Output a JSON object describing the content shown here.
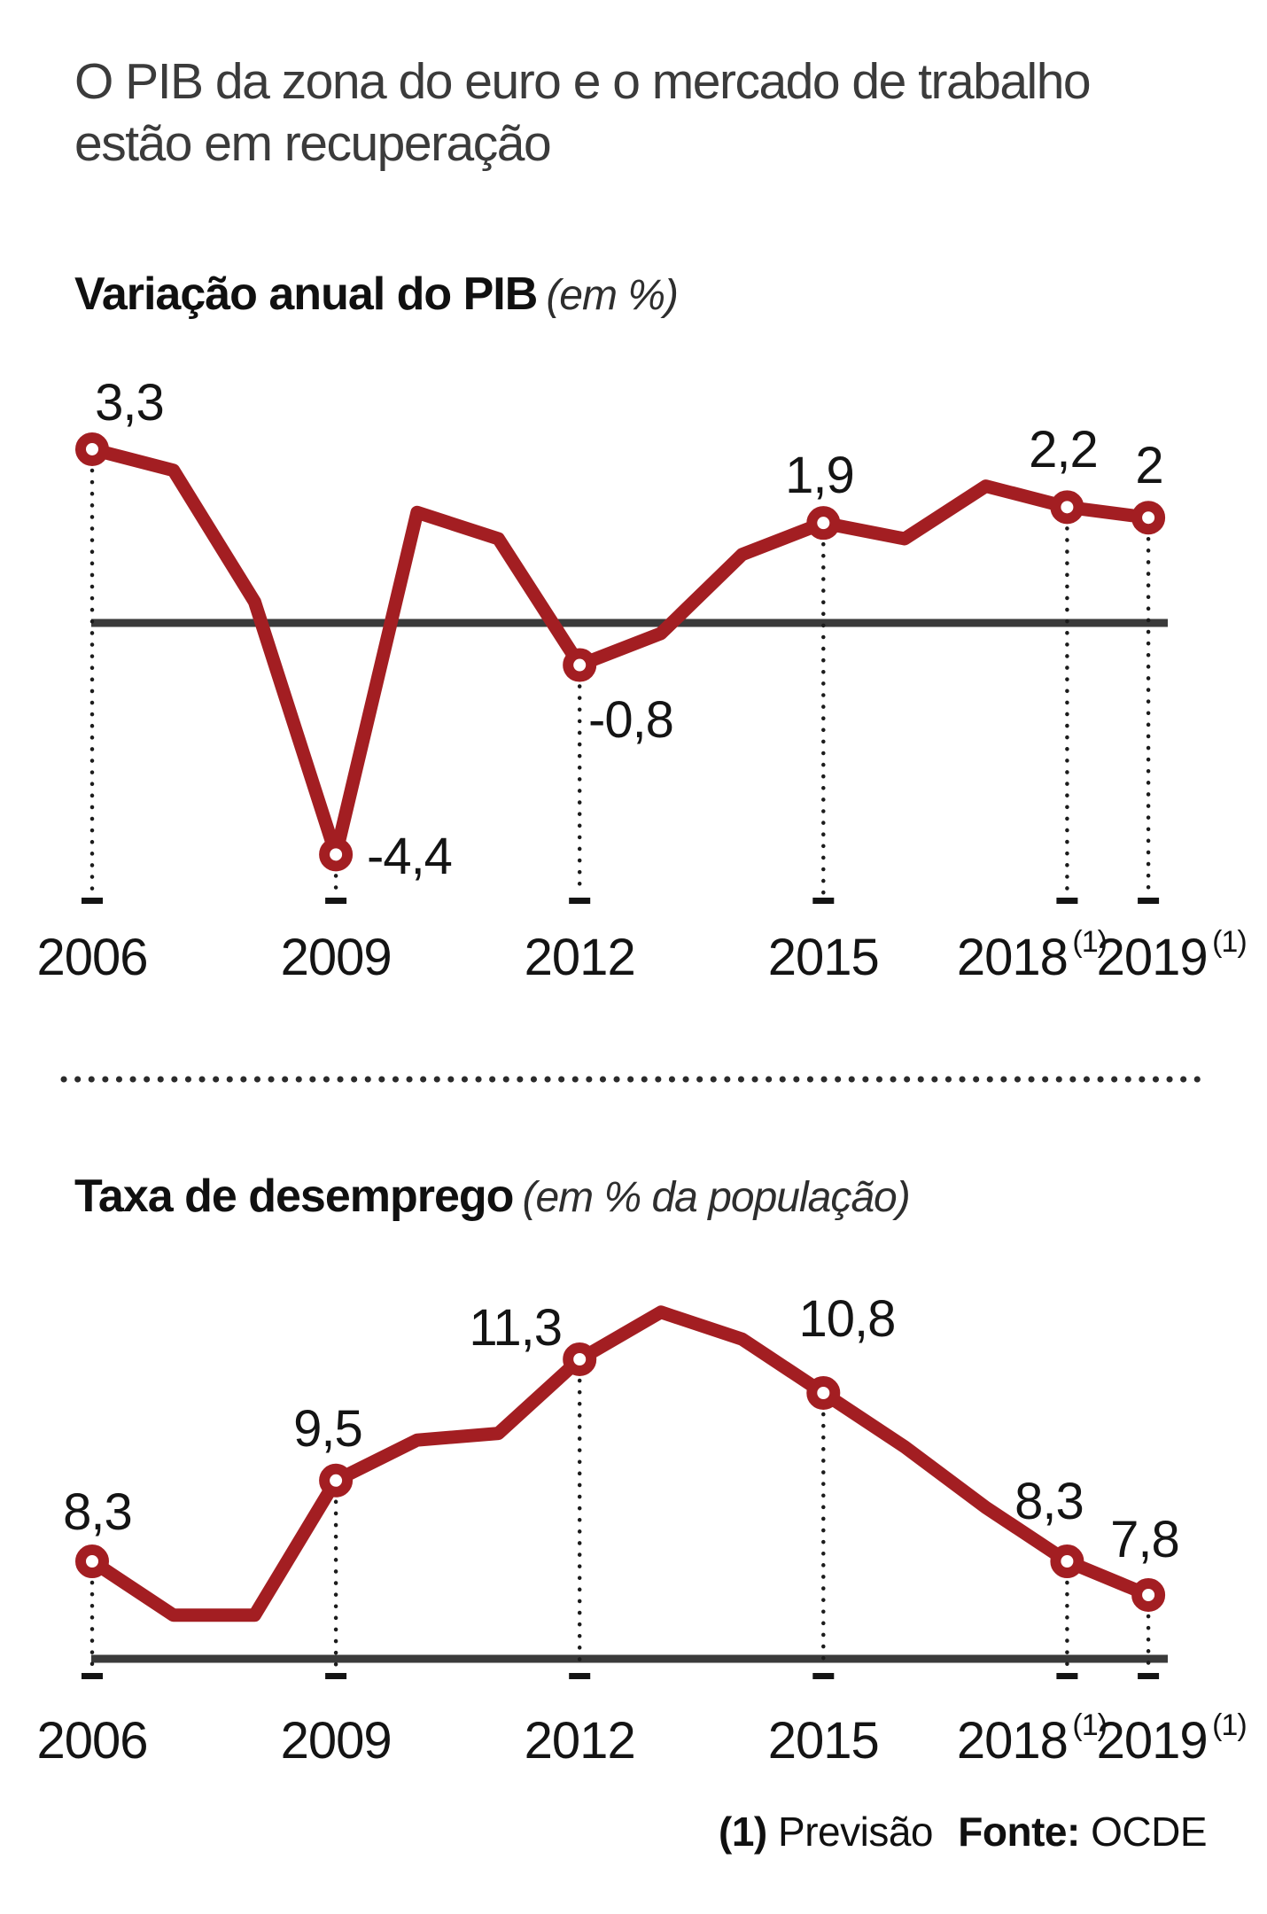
{
  "header": {
    "title_line1": "O PIB da zona do euro e o mercado de trabalho",
    "title_line2": "estão em recuperação"
  },
  "gdp_chart_header": {
    "title": "Variação anual do PIB",
    "unit_note": "(em %)"
  },
  "unemp_chart_header": {
    "title": "Taxa de desemprego",
    "unit_note": "(em % da população)"
  },
  "footer": {
    "marker": "(1)",
    "note": "Previsão",
    "source_label": "Fonte:",
    "source_value": "OCDE"
  },
  "colors": {
    "line_red": "#A31E22",
    "axis_dark": "#3a3a3a",
    "text_black": "#141414",
    "title_gray": "#3b3b3b"
  },
  "chart_data": [
    {
      "type": "line",
      "title": "Variação anual do PIB",
      "ylabel": "em %",
      "x": [
        2006,
        2007,
        2008,
        2009,
        2010,
        2011,
        2012,
        2013,
        2014,
        2015,
        2016,
        2017,
        2018,
        2019
      ],
      "values": [
        3.3,
        2.9,
        0.4,
        -4.4,
        2.1,
        1.6,
        -0.8,
        -0.2,
        1.3,
        1.9,
        1.6,
        2.6,
        2.2,
        2.0
      ],
      "baseline": "zero-line",
      "grid": false,
      "legend": "none",
      "labeled_points": [
        {
          "year": 2006,
          "value": 3.3,
          "label": "3,3"
        },
        {
          "year": 2009,
          "value": -4.4,
          "label": "-4,4"
        },
        {
          "year": 2012,
          "value": -0.8,
          "label": "-0,8"
        },
        {
          "year": 2015,
          "value": 1.9,
          "label": "1,9"
        },
        {
          "year": 2018,
          "value": 2.2,
          "label": "2,2"
        },
        {
          "year": 2019,
          "value": 2.0,
          "label": "2"
        }
      ],
      "x_ticks": [
        {
          "year": 2006,
          "label": "2006",
          "superscript": ""
        },
        {
          "year": 2009,
          "label": "2009",
          "superscript": ""
        },
        {
          "year": 2012,
          "label": "2012",
          "superscript": ""
        },
        {
          "year": 2015,
          "label": "2015",
          "superscript": ""
        },
        {
          "year": 2018,
          "label": "2018",
          "superscript": "(1)"
        },
        {
          "year": 2019,
          "label": "2019",
          "superscript": "(1)"
        }
      ]
    },
    {
      "type": "line",
      "title": "Taxa de desemprego",
      "ylabel": "em % da população",
      "x": [
        2006,
        2007,
        2008,
        2009,
        2010,
        2011,
        2012,
        2013,
        2014,
        2015,
        2016,
        2017,
        2018,
        2019
      ],
      "values": [
        8.3,
        7.5,
        7.5,
        9.5,
        10.1,
        10.2,
        11.3,
        12.0,
        11.6,
        10.8,
        10.0,
        9.1,
        8.3,
        7.8
      ],
      "baseline": "floor-line",
      "grid": false,
      "legend": "none",
      "labeled_points": [
        {
          "year": 2006,
          "value": 8.3,
          "label": "8,3"
        },
        {
          "year": 2009,
          "value": 9.5,
          "label": "9,5"
        },
        {
          "year": 2012,
          "value": 11.3,
          "label": "11,3"
        },
        {
          "year": 2015,
          "value": 10.8,
          "label": "10,8"
        },
        {
          "year": 2018,
          "value": 8.3,
          "label": "8,3"
        },
        {
          "year": 2019,
          "value": 7.8,
          "label": "7,8"
        }
      ],
      "x_ticks": [
        {
          "year": 2006,
          "label": "2006",
          "superscript": ""
        },
        {
          "year": 2009,
          "label": "2009",
          "superscript": ""
        },
        {
          "year": 2012,
          "label": "2012",
          "superscript": ""
        },
        {
          "year": 2015,
          "label": "2015",
          "superscript": ""
        },
        {
          "year": 2018,
          "label": "2018",
          "superscript": "(1)"
        },
        {
          "year": 2019,
          "label": "2019",
          "superscript": "(1)"
        }
      ]
    }
  ]
}
